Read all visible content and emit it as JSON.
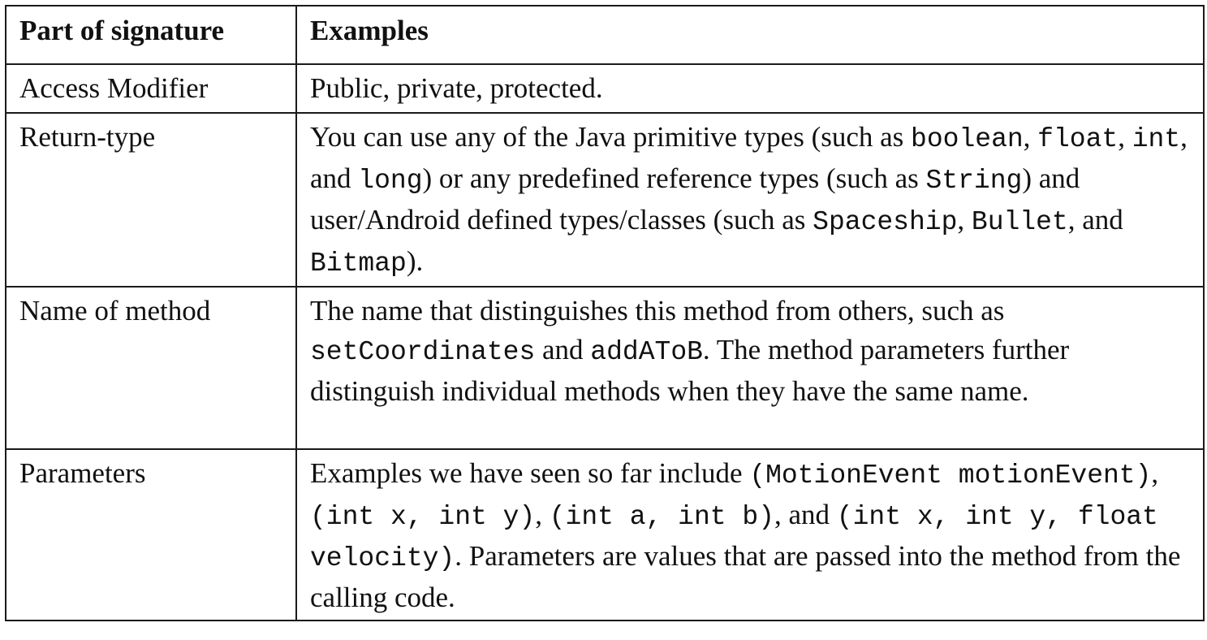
{
  "table": {
    "headers": [
      "Part of signature",
      "Examples"
    ],
    "rows": [
      {
        "part": "Access Modifier",
        "examples": [
          {
            "t": "Public, private, protected."
          }
        ]
      },
      {
        "part": "Return-type",
        "examples": [
          {
            "t": "You can use any of the Java primitive types (such as "
          },
          {
            "c": "boolean"
          },
          {
            "t": ", "
          },
          {
            "c": "float"
          },
          {
            "t": ", "
          },
          {
            "c": "int"
          },
          {
            "t": ", and "
          },
          {
            "c": "long"
          },
          {
            "t": ") or any predefined reference types (such as "
          },
          {
            "c": "String"
          },
          {
            "t": ") and user/Android defined types/classes (such as "
          },
          {
            "c": "Spaceship"
          },
          {
            "t": ", "
          },
          {
            "c": "Bullet"
          },
          {
            "t": ", and "
          },
          {
            "c": "Bitmap"
          },
          {
            "t": ")."
          }
        ]
      },
      {
        "part": "Name of method",
        "examples": [
          {
            "t": "The name that distinguishes this method from others, such as "
          },
          {
            "c": "setCoordinates"
          },
          {
            "t": " and "
          },
          {
            "c": "addAToB"
          },
          {
            "t": ". The method parameters further distinguish individual methods when they have the same name."
          }
        ]
      },
      {
        "part": "Parameters",
        "examples": [
          {
            "t": "Examples we have seen so far include "
          },
          {
            "c": "(MotionEvent motionEvent)"
          },
          {
            "t": ", "
          },
          {
            "c": "(int x, int y)"
          },
          {
            "t": ", "
          },
          {
            "c": "(int a, int b)"
          },
          {
            "t": ", and "
          },
          {
            "c": "(int x, int y, float velocity)"
          },
          {
            "t": ". Parameters are values that are passed into the method from the calling code."
          }
        ]
      }
    ]
  }
}
